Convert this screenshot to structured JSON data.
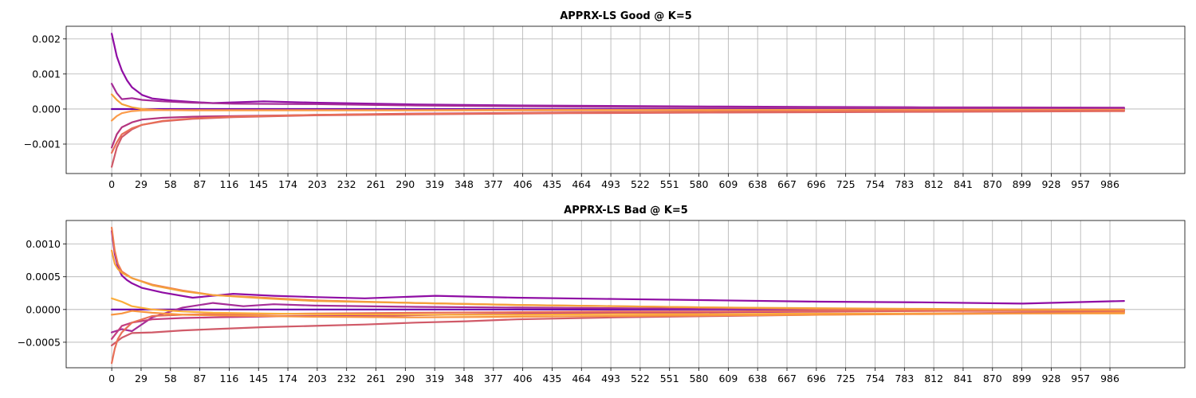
{
  "chart_data": [
    {
      "type": "line",
      "title": "APPRX-LS Good @ K=5",
      "xlabel": "",
      "ylabel": "",
      "xlim": [
        -45,
        1060
      ],
      "ylim": [
        -0.00184,
        0.00236
      ],
      "xticks": [
        0,
        29,
        58,
        87,
        116,
        145,
        174,
        203,
        232,
        261,
        290,
        319,
        348,
        377,
        406,
        435,
        464,
        493,
        522,
        551,
        580,
        609,
        638,
        667,
        696,
        725,
        754,
        783,
        812,
        841,
        870,
        899,
        928,
        957,
        986
      ],
      "xtick_labels": [
        "0",
        "29",
        "58",
        "87",
        "116",
        "145",
        "174",
        "203",
        "232",
        "261",
        "290",
        "319",
        "348",
        "377",
        "406",
        "435",
        "464",
        "493",
        "522",
        "551",
        "580",
        "609",
        "638",
        "667",
        "696",
        "725",
        "754",
        "783",
        "812",
        "841",
        "870",
        "899",
        "928",
        "957",
        "986"
      ],
      "yticks": [
        -0.001,
        0.0,
        0.001,
        0.002
      ],
      "ytick_labels": [
        "−0.001",
        "0.000",
        "0.001",
        "0.002"
      ],
      "grid": true,
      "series": [
        {
          "color": "#6a00a8",
          "x": [
            0,
            1000
          ],
          "y": [
            0.0,
            0.0
          ]
        },
        {
          "color": "#8f0da4",
          "x": [
            0,
            5,
            10,
            15,
            20,
            30,
            40,
            60,
            80,
            100,
            150,
            200,
            300,
            400,
            600,
            800,
            1000
          ],
          "y": [
            0.00215,
            0.0015,
            0.0011,
            0.00082,
            0.00062,
            0.0004,
            0.0003,
            0.00024,
            0.0002,
            0.00017,
            0.00022,
            0.00018,
            0.00013,
            0.0001,
            7e-05,
            5e-05,
            4e-05
          ]
        },
        {
          "color": "#a52c98",
          "x": [
            0,
            5,
            10,
            20,
            30,
            50,
            80,
            120,
            200,
            300,
            450,
            600,
            800,
            1000
          ],
          "y": [
            0.00072,
            0.00045,
            0.00028,
            0.00031,
            0.00026,
            0.00022,
            0.00018,
            0.00015,
            0.00014,
            0.0001,
            7e-05,
            5e-05,
            4e-05,
            3e-05
          ]
        },
        {
          "color": "#f4a13b",
          "x": [
            0,
            5,
            10,
            20,
            30,
            50,
            80,
            150,
            300,
            500,
            700,
            1000
          ],
          "y": [
            0.00042,
            0.00026,
            0.00014,
            5e-05,
            0.0,
            -3e-05,
            -4e-05,
            -4e-05,
            -4e-05,
            -4e-05,
            -3e-05,
            -4e-05
          ]
        },
        {
          "color": "#fb9b4a",
          "x": [
            0,
            5,
            10,
            20,
            30,
            50,
            100,
            300,
            600,
            1000
          ],
          "y": [
            -0.00033,
            -0.0002,
            -0.00012,
            -6e-05,
            -4e-05,
            -3e-05,
            -3e-05,
            -3e-05,
            -2e-05,
            -2e-05
          ]
        },
        {
          "color": "#b4357f",
          "x": [
            0,
            5,
            10,
            20,
            30,
            50,
            80,
            120,
            200,
            300,
            450,
            600,
            800,
            1000
          ],
          "y": [
            -0.0011,
            -0.00072,
            -0.00052,
            -0.00038,
            -0.0003,
            -0.00025,
            -0.00022,
            -0.0002,
            -0.00017,
            -0.00013,
            -0.0001,
            -8e-05,
            -6e-05,
            -5e-05
          ]
        },
        {
          "color": "#d05a68",
          "x": [
            0,
            5,
            10,
            20,
            30,
            50,
            80,
            120,
            200,
            300,
            450,
            600,
            800,
            1000
          ],
          "y": [
            -0.00165,
            -0.0011,
            -0.0008,
            -0.00058,
            -0.00045,
            -0.00035,
            -0.00028,
            -0.00023,
            -0.00018,
            -0.00015,
            -0.00012,
            -0.0001,
            -8e-05,
            -6e-05
          ]
        },
        {
          "color": "#e86f57",
          "x": [
            0,
            5,
            10,
            20,
            30,
            50,
            80,
            120,
            200,
            300,
            450,
            600,
            800,
            1000
          ],
          "y": [
            -0.00125,
            -0.00095,
            -0.00072,
            -0.00055,
            -0.00045,
            -0.00034,
            -0.00027,
            -0.00022,
            -0.00017,
            -0.00014,
            -0.00011,
            -8e-05,
            -6e-05,
            -5e-05
          ]
        }
      ]
    },
    {
      "type": "line",
      "title": "APPRX-LS Bad @ K=5",
      "xlabel": "",
      "ylabel": "",
      "xlim": [
        -45,
        1060
      ],
      "ylim": [
        -0.00089,
        0.00136
      ],
      "xticks": [
        0,
        29,
        58,
        87,
        116,
        145,
        174,
        203,
        232,
        261,
        290,
        319,
        348,
        377,
        406,
        435,
        464,
        493,
        522,
        551,
        580,
        609,
        638,
        667,
        696,
        725,
        754,
        783,
        812,
        841,
        870,
        899,
        928,
        957,
        986
      ],
      "xtick_labels": [
        "0",
        "29",
        "58",
        "87",
        "116",
        "145",
        "174",
        "203",
        "232",
        "261",
        "290",
        "319",
        "348",
        "377",
        "406",
        "435",
        "464",
        "493",
        "522",
        "551",
        "580",
        "609",
        "638",
        "667",
        "696",
        "725",
        "754",
        "783",
        "812",
        "841",
        "870",
        "899",
        "928",
        "957",
        "986"
      ],
      "yticks": [
        -0.0005,
        0.0,
        0.0005,
        0.001
      ],
      "ytick_labels": [
        "−0.0005",
        "0.0000",
        "0.0005",
        "0.0010"
      ],
      "grid": true,
      "series": [
        {
          "color": "#6a00a8",
          "x": [
            0,
            1000
          ],
          "y": [
            0.0,
            0.0
          ]
        },
        {
          "color": "#8f0da4",
          "x": [
            0,
            3,
            6,
            10,
            15,
            20,
            30,
            50,
            80,
            120,
            160,
            200,
            250,
            320,
            400,
            500,
            600,
            700,
            800,
            900,
            1000
          ],
          "y": [
            0.0012,
            0.00085,
            0.00065,
            0.00052,
            0.00045,
            0.0004,
            0.00033,
            0.00026,
            0.00018,
            0.00024,
            0.00021,
            0.00019,
            0.00017,
            0.00021,
            0.00018,
            0.00016,
            0.00014,
            0.00012,
            0.00011,
            9e-05,
            0.00013
          ]
        },
        {
          "color": "#a52c98",
          "x": [
            0,
            10,
            20,
            40,
            70,
            100,
            130,
            160,
            200,
            300,
            400,
            500,
            600,
            700,
            800,
            900,
            1000
          ],
          "y": [
            -0.00035,
            -0.0003,
            -0.00033,
            -0.00012,
            3e-05,
            0.0001,
            5e-05,
            8e-05,
            6e-05,
            4e-05,
            3e-05,
            2e-05,
            1e-05,
            0.0,
            -1e-05,
            -1e-05,
            -1e-05
          ]
        },
        {
          "color": "#c43e7f",
          "x": [
            0,
            10,
            20,
            40,
            70,
            100,
            140,
            180,
            250,
            330,
            420,
            520,
            620,
            720,
            820,
            920,
            1000
          ],
          "y": [
            -0.00045,
            -0.00025,
            -0.0002,
            -0.00015,
            -0.00013,
            -0.00012,
            -0.00011,
            -0.0001,
            -0.0001,
            -8e-05,
            -6e-05,
            -5e-05,
            -4e-05,
            -3e-05,
            -2e-05,
            -2e-05,
            -2e-05
          ]
        },
        {
          "color": "#d05a68",
          "x": [
            0,
            10,
            20,
            40,
            70,
            100,
            150,
            200,
            250,
            300,
            350,
            400,
            500,
            600,
            700,
            800,
            900,
            1000
          ],
          "y": [
            -0.00055,
            -0.00043,
            -0.00036,
            -0.00035,
            -0.00032,
            -0.0003,
            -0.00027,
            -0.00025,
            -0.00023,
            -0.0002,
            -0.00018,
            -0.00015,
            -0.00012,
            -0.0001,
            -8e-05,
            -6e-05,
            -5e-05,
            -4e-05
          ]
        },
        {
          "color": "#e86f57",
          "x": [
            0,
            3,
            6,
            10,
            20,
            40,
            70,
            100,
            150,
            200,
            300,
            400,
            500,
            600,
            700,
            800,
            900,
            1000
          ],
          "y": [
            -0.00082,
            -0.0006,
            -0.00045,
            -0.00035,
            -0.0002,
            -0.0001,
            -8e-05,
            -7e-05,
            -7e-05,
            -6e-05,
            -5e-05,
            -4e-05,
            -3e-05,
            -3e-05,
            -2e-05,
            -2e-05,
            -2e-05,
            -2e-05
          ]
        },
        {
          "color": "#ee7b4e",
          "x": [
            0,
            3,
            6,
            10,
            20,
            40,
            70,
            100,
            150,
            200,
            300,
            400,
            500,
            600,
            700,
            800,
            900,
            1000
          ],
          "y": [
            0.00125,
            0.0009,
            0.0007,
            0.00058,
            0.00048,
            0.00038,
            0.00029,
            0.00022,
            0.00018,
            0.00014,
            0.0001,
            7e-05,
            5e-05,
            3e-05,
            1e-05,
            0.0,
            -1e-05,
            -2e-05
          ]
        },
        {
          "color": "#f4a13b",
          "x": [
            0,
            3,
            6,
            10,
            20,
            40,
            70,
            100,
            150,
            200,
            300,
            400,
            500,
            600,
            700,
            800,
            900,
            1000
          ],
          "y": [
            0.0009,
            0.0007,
            0.00062,
            0.00056,
            0.00048,
            0.00037,
            0.00028,
            0.00022,
            0.00017,
            0.00013,
            0.0001,
            7e-05,
            5e-05,
            3e-05,
            2e-05,
            1e-05,
            0.0,
            0.0
          ]
        },
        {
          "color": "#fbad3a",
          "x": [
            0,
            10,
            20,
            40,
            70,
            100,
            150,
            200,
            300,
            400,
            500,
            600,
            700,
            800,
            900,
            1000
          ],
          "y": [
            0.00017,
            0.00012,
            5e-05,
            0.0,
            -3e-05,
            -5e-05,
            -6e-05,
            -7e-05,
            -8e-05,
            -8e-05,
            -7e-05,
            -7e-05,
            -6e-05,
            -6e-05,
            -6e-05,
            -6e-05
          ]
        },
        {
          "color": "#f89540",
          "x": [
            0,
            10,
            20,
            40,
            70,
            100,
            150,
            200,
            300,
            400,
            500,
            600,
            700,
            800,
            900,
            1000
          ],
          "y": [
            -8e-05,
            -6e-05,
            -2e-05,
            -5e-05,
            -8e-05,
            -9e-05,
            -0.0001,
            -0.00011,
            -0.00012,
            -0.00011,
            -0.0001,
            -9e-05,
            -8e-05,
            -7e-05,
            -6e-05,
            -5e-05
          ]
        }
      ]
    }
  ]
}
